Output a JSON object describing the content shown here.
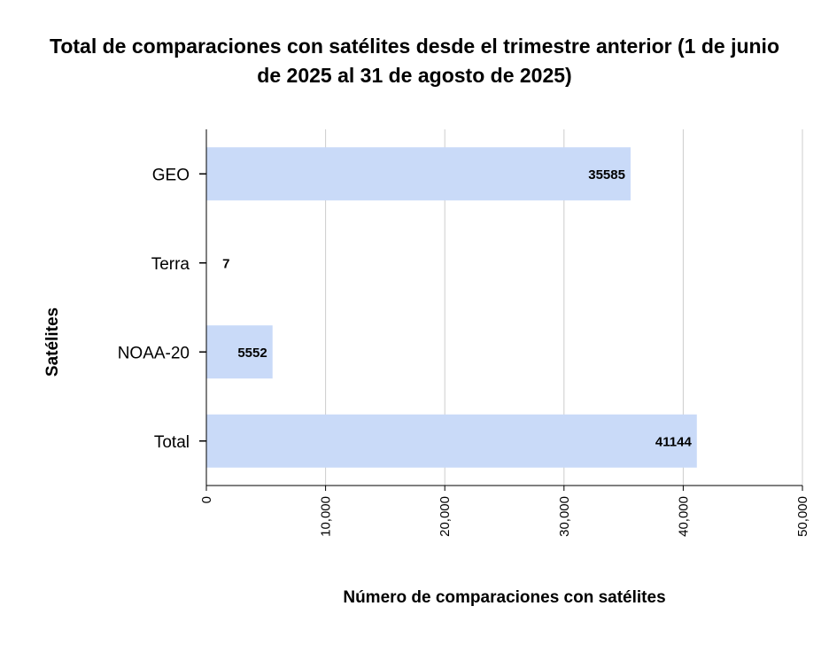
{
  "chart_data": {
    "type": "bar",
    "orientation": "horizontal",
    "title": "Total de comparaciones con satélites desde el trimestre anterior (1 de junio de 2025 al 31 de agosto de 2025)",
    "xlabel": "Número de comparaciones con satélites",
    "ylabel": "Satélites",
    "categories": [
      "GEO",
      "Terra",
      "NOAA-20",
      "Total"
    ],
    "values": [
      35585,
      7,
      5552,
      41144
    ],
    "data_labels": [
      "35585",
      "7",
      "5552",
      "41144"
    ],
    "xlim": [
      0,
      50000
    ],
    "x_ticks": [
      0,
      10000,
      20000,
      30000,
      40000,
      50000
    ],
    "x_tick_labels": [
      "0",
      "10,000",
      "20,000",
      "30,000",
      "40,000",
      "50,000"
    ],
    "grid": true,
    "legend": "none",
    "bar_color": "#c9daf8",
    "grid_color": "#cccccc",
    "axis_color": "#000000"
  }
}
